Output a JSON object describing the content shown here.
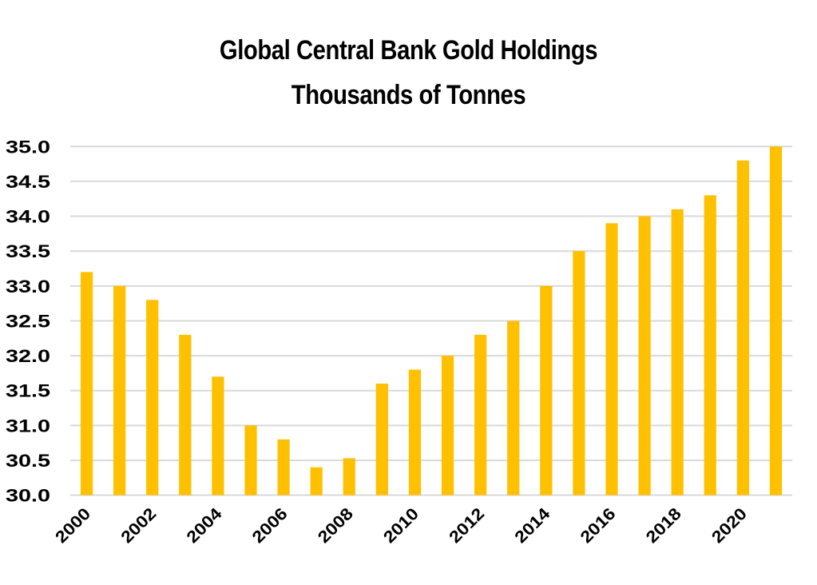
{
  "chart_data": {
    "type": "bar",
    "title": "Global Central Bank Gold Holdings",
    "subtitle": "Thousands of Tonnes",
    "xlabel": "",
    "ylabel": "",
    "categories": [
      "2000",
      "2001",
      "2002",
      "2003",
      "2004",
      "2005",
      "2006",
      "2007",
      "2008",
      "2009",
      "2010",
      "2011",
      "2012",
      "2013",
      "2014",
      "2015",
      "2016",
      "2017",
      "2018",
      "2019",
      "2020",
      "2021"
    ],
    "values": [
      33.2,
      33.0,
      32.8,
      32.3,
      31.7,
      31.0,
      30.8,
      30.4,
      30.53,
      31.6,
      31.8,
      32.0,
      32.3,
      32.5,
      33.0,
      33.5,
      33.9,
      34.0,
      34.1,
      34.3,
      34.8,
      35.0
    ],
    "x_tick_labels": [
      "2000",
      "2002",
      "2004",
      "2006",
      "2008",
      "2010",
      "2012",
      "2014",
      "2016",
      "2018",
      "2020"
    ],
    "y_tick_labels": [
      "30.0",
      "30.5",
      "31.0",
      "31.5",
      "32.0",
      "32.5",
      "33.0",
      "33.5",
      "34.0",
      "34.5",
      "35.0"
    ],
    "y_ticks": [
      30.0,
      30.5,
      31.0,
      31.5,
      32.0,
      32.5,
      33.0,
      33.5,
      34.0,
      34.5,
      35.0
    ],
    "ylim": [
      30.0,
      35.0
    ],
    "grid": true,
    "legend": "none",
    "x_label_rotation": "-45 degrees",
    "colors": {
      "bar": "#FFC000",
      "grid": "#D9D9D9",
      "text": "#000000"
    }
  }
}
